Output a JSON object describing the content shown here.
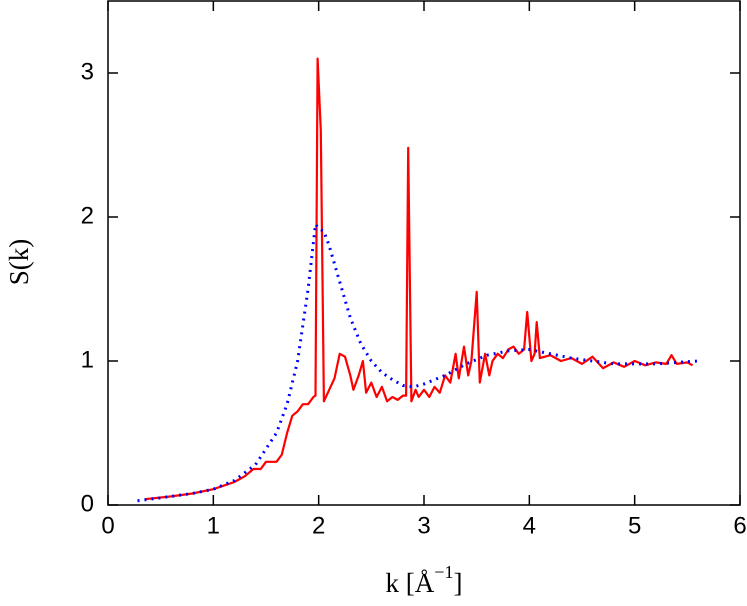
{
  "chart_data": {
    "type": "line",
    "ylabel": "S(k)",
    "xlabel": {
      "base": "k [Å",
      "sup": "−1",
      "close": "]"
    },
    "xlim": [
      0,
      6
    ],
    "xticks": [
      0,
      1,
      2,
      3,
      4,
      5,
      6
    ],
    "ylim": [
      0,
      3.5
    ],
    "yticks": [
      0,
      1,
      2,
      3
    ],
    "series": [
      {
        "color": "#ff0000",
        "style": "solid",
        "x": [
          0.35,
          0.6,
          0.8,
          1.0,
          1.2,
          1.3,
          1.38,
          1.45,
          1.5,
          1.6,
          1.65,
          1.7,
          1.75,
          1.8,
          1.85,
          1.9,
          1.95,
          1.97,
          1.99,
          2.02,
          2.05,
          2.1,
          2.15,
          2.2,
          2.25,
          2.3,
          2.33,
          2.38,
          2.42,
          2.45,
          2.5,
          2.55,
          2.6,
          2.65,
          2.7,
          2.75,
          2.8,
          2.83,
          2.85,
          2.88,
          2.92,
          2.95,
          3.0,
          3.05,
          3.1,
          3.15,
          3.2,
          3.25,
          3.3,
          3.33,
          3.38,
          3.42,
          3.45,
          3.5,
          3.53,
          3.58,
          3.62,
          3.65,
          3.7,
          3.75,
          3.8,
          3.85,
          3.9,
          3.95,
          3.98,
          4.02,
          4.05,
          4.07,
          4.1,
          4.2,
          4.3,
          4.4,
          4.5,
          4.6,
          4.7,
          4.8,
          4.9,
          5.0,
          5.1,
          5.2,
          5.3,
          5.35,
          5.4,
          5.5,
          5.55
        ],
        "values": [
          0.04,
          0.06,
          0.08,
          0.11,
          0.16,
          0.2,
          0.25,
          0.25,
          0.3,
          0.3,
          0.35,
          0.5,
          0.62,
          0.65,
          0.7,
          0.7,
          0.75,
          0.76,
          3.1,
          2.6,
          0.72,
          0.8,
          0.88,
          1.05,
          1.03,
          0.9,
          0.8,
          0.9,
          1.0,
          0.78,
          0.85,
          0.75,
          0.82,
          0.72,
          0.75,
          0.73,
          0.76,
          0.76,
          2.48,
          0.72,
          0.8,
          0.75,
          0.8,
          0.75,
          0.82,
          0.78,
          0.9,
          0.85,
          1.05,
          0.88,
          1.1,
          0.9,
          1.0,
          1.48,
          0.85,
          1.05,
          0.9,
          1.0,
          1.05,
          1.02,
          1.08,
          1.1,
          1.05,
          1.08,
          1.34,
          1.0,
          1.05,
          1.27,
          1.02,
          1.04,
          1.0,
          1.02,
          0.98,
          1.03,
          0.95,
          0.99,
          0.96,
          1.0,
          0.97,
          0.99,
          0.98,
          1.04,
          0.98,
          0.99,
          0.97
        ]
      },
      {
        "color": "#0000ff",
        "style": "dotted",
        "x": [
          0.28,
          0.5,
          0.8,
          1.0,
          1.2,
          1.4,
          1.6,
          1.7,
          1.8,
          1.9,
          1.97,
          2.0,
          2.05,
          2.1,
          2.2,
          2.3,
          2.4,
          2.5,
          2.6,
          2.7,
          2.8,
          2.9,
          3.0,
          3.2,
          3.4,
          3.6,
          3.8,
          4.0,
          4.2,
          4.4,
          4.6,
          4.8,
          5.0,
          5.2,
          5.4,
          5.6
        ],
        "values": [
          0.03,
          0.05,
          0.08,
          0.11,
          0.17,
          0.28,
          0.5,
          0.7,
          1.0,
          1.5,
          1.95,
          1.92,
          1.9,
          1.8,
          1.55,
          1.3,
          1.12,
          1.0,
          0.92,
          0.87,
          0.83,
          0.82,
          0.84,
          0.9,
          0.98,
          1.04,
          1.07,
          1.08,
          1.05,
          1.02,
          1.0,
          0.98,
          0.98,
          0.98,
          0.99,
          1.0
        ]
      }
    ]
  }
}
